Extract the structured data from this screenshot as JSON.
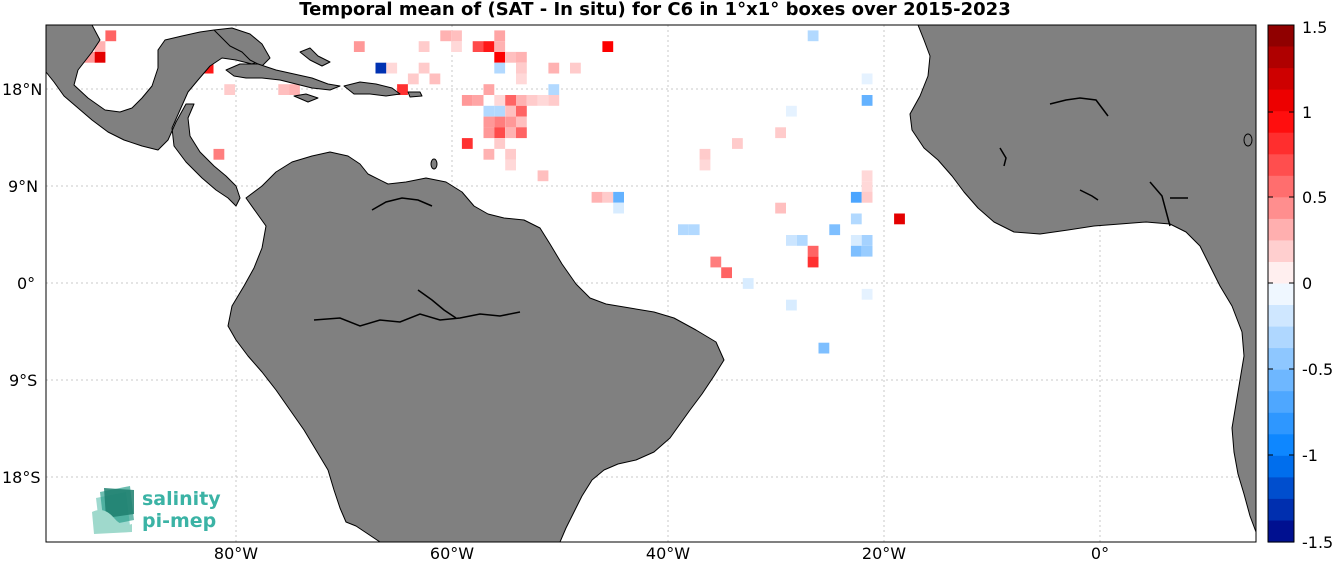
{
  "title": "Temporal mean of (SAT - In situ) for C6 in 1°x1° boxes over 2015-2023",
  "lat_labels": [
    "18°N",
    "9°N",
    "0°",
    "9°S",
    "18°S"
  ],
  "lon_labels": [
    "80°W",
    "60°W",
    "40°W",
    "20°W",
    "0°"
  ],
  "colorbar": {
    "ticks": [
      "1.5",
      "1",
      "0.5",
      "0",
      "-0.5",
      "-1",
      "-1.5"
    ],
    "min": -1.5,
    "max": 1.5,
    "steps": 24
  },
  "logo": {
    "line1": "salinity",
    "line2": "pi-mep"
  },
  "colors": {
    "land": "#808080",
    "ocean": "#ffffff",
    "grid": "#c8c8c8",
    "logo": "#3bb3a5"
  },
  "map_data": {
    "lon_range": [
      -98,
      14
    ],
    "lat_range": [
      -24,
      24
    ],
    "cells": [
      {
        "lon": -95,
        "lat": 22,
        "v": 0.35
      },
      {
        "lon": -93,
        "lat": 22,
        "v": 0.3
      },
      {
        "lon": -92,
        "lat": 23,
        "v": 0.6
      },
      {
        "lon": -93,
        "lat": 21,
        "v": 1.1
      },
      {
        "lon": -94,
        "lat": 21,
        "v": 0.4
      },
      {
        "lon": -83,
        "lat": 20,
        "v": 0.9
      },
      {
        "lon": -69,
        "lat": 22,
        "v": 0.4
      },
      {
        "lon": -67,
        "lat": 20,
        "v": -1.3
      },
      {
        "lon": -66,
        "lat": 20,
        "v": 0.15
      },
      {
        "lon": -63,
        "lat": 20,
        "v": 0.2
      },
      {
        "lon": -62,
        "lat": 19,
        "v": 0.25
      },
      {
        "lon": -64,
        "lat": 19,
        "v": 0.2
      },
      {
        "lon": -65,
        "lat": 18,
        "v": 0.8
      },
      {
        "lon": -63,
        "lat": 22,
        "v": 0.2
      },
      {
        "lon": -61,
        "lat": 23,
        "v": 0.3
      },
      {
        "lon": -60,
        "lat": 22,
        "v": 0.15
      },
      {
        "lon": -60,
        "lat": 23,
        "v": 0.25
      },
      {
        "lon": -58,
        "lat": 22,
        "v": 0.7
      },
      {
        "lon": -57,
        "lat": 22,
        "v": 0.9
      },
      {
        "lon": -56,
        "lat": 21,
        "v": 1.0
      },
      {
        "lon": -56,
        "lat": 22,
        "v": 0.3
      },
      {
        "lon": -55,
        "lat": 21,
        "v": 0.25
      },
      {
        "lon": -54,
        "lat": 21,
        "v": 0.3
      },
      {
        "lon": -56,
        "lat": 20,
        "v": -0.3
      },
      {
        "lon": -54,
        "lat": 20,
        "v": 0.2
      },
      {
        "lon": -54,
        "lat": 19,
        "v": 0.15
      },
      {
        "lon": -56,
        "lat": 23,
        "v": 0.35
      },
      {
        "lon": -57,
        "lat": 18,
        "v": 0.35
      },
      {
        "lon": -59,
        "lat": 17,
        "v": 0.4
      },
      {
        "lon": -58,
        "lat": 17,
        "v": 0.35
      },
      {
        "lon": -56,
        "lat": 17,
        "v": 0.15
      },
      {
        "lon": -55,
        "lat": 17,
        "v": 0.6
      },
      {
        "lon": -54,
        "lat": 17,
        "v": 0.3
      },
      {
        "lon": -53,
        "lat": 17,
        "v": 0.2
      },
      {
        "lon": -57,
        "lat": 16,
        "v": -0.3
      },
      {
        "lon": -56,
        "lat": 16,
        "v": -0.3
      },
      {
        "lon": -55,
        "lat": 16,
        "v": 0.25
      },
      {
        "lon": -54,
        "lat": 16,
        "v": 0.6
      },
      {
        "lon": -57,
        "lat": 15,
        "v": 0.4
      },
      {
        "lon": -56,
        "lat": 15,
        "v": 0.5
      },
      {
        "lon": -55,
        "lat": 15,
        "v": 0.4
      },
      {
        "lon": -54,
        "lat": 15,
        "v": 0.25
      },
      {
        "lon": -57,
        "lat": 14,
        "v": 0.4
      },
      {
        "lon": -56,
        "lat": 14,
        "v": 0.7
      },
      {
        "lon": -55,
        "lat": 14,
        "v": 0.3
      },
      {
        "lon": -54,
        "lat": 14,
        "v": 0.6
      },
      {
        "lon": -59,
        "lat": 13,
        "v": 0.8
      },
      {
        "lon": -57,
        "lat": 12,
        "v": 0.3
      },
      {
        "lon": -55,
        "lat": 12,
        "v": 0.2
      },
      {
        "lon": -55,
        "lat": 11,
        "v": 0.15
      },
      {
        "lon": -56,
        "lat": 13,
        "v": 0.2
      },
      {
        "lon": -52,
        "lat": 10,
        "v": 0.25
      },
      {
        "lon": -51,
        "lat": 17,
        "v": 0.2
      },
      {
        "lon": -51,
        "lat": 18,
        "v": -0.3
      },
      {
        "lon": -52,
        "lat": 17,
        "v": 0.15
      },
      {
        "lon": -51,
        "lat": 20,
        "v": 0.3
      },
      {
        "lon": -49,
        "lat": 20,
        "v": 0.2
      },
      {
        "lon": -46,
        "lat": 22,
        "v": 1.0
      },
      {
        "lon": -82,
        "lat": 12,
        "v": 0.5
      },
      {
        "lon": -81,
        "lat": 18,
        "v": 0.2
      },
      {
        "lon": -76,
        "lat": 18,
        "v": 0.25
      },
      {
        "lon": -75,
        "lat": 18,
        "v": 0.3
      },
      {
        "lon": -47,
        "lat": 8,
        "v": 0.3
      },
      {
        "lon": -46,
        "lat": 8,
        "v": 0.2
      },
      {
        "lon": -45,
        "lat": 8,
        "v": -0.6
      },
      {
        "lon": -45,
        "lat": 7,
        "v": -0.15
      },
      {
        "lon": -39,
        "lat": 5,
        "v": -0.3
      },
      {
        "lon": -38,
        "lat": 5,
        "v": -0.3
      },
      {
        "lon": -37,
        "lat": 11,
        "v": 0.15
      },
      {
        "lon": -37,
        "lat": 12,
        "v": 0.2
      },
      {
        "lon": -34,
        "lat": 13,
        "v": 0.2
      },
      {
        "lon": -36,
        "lat": 2,
        "v": 0.5
      },
      {
        "lon": -35,
        "lat": 1,
        "v": 0.6
      },
      {
        "lon": -33,
        "lat": 0,
        "v": -0.15
      },
      {
        "lon": -30,
        "lat": 14,
        "v": 0.2
      },
      {
        "lon": -29,
        "lat": 16,
        "v": -0.1
      },
      {
        "lon": -30,
        "lat": 7,
        "v": 0.25
      },
      {
        "lon": -29,
        "lat": 4,
        "v": -0.2
      },
      {
        "lon": -28,
        "lat": 4,
        "v": -0.3
      },
      {
        "lon": -27,
        "lat": 3,
        "v": 0.6
      },
      {
        "lon": -27,
        "lat": 2,
        "v": 0.8
      },
      {
        "lon": -27,
        "lat": 23,
        "v": -0.3
      },
      {
        "lon": -25,
        "lat": 5,
        "v": -0.5
      },
      {
        "lon": -29,
        "lat": -2,
        "v": -0.15
      },
      {
        "lon": -26,
        "lat": -6,
        "v": -0.5
      },
      {
        "lon": -23,
        "lat": 8,
        "v": -0.7
      },
      {
        "lon": -23,
        "lat": 6,
        "v": -0.3
      },
      {
        "lon": -23,
        "lat": 4,
        "v": -0.15
      },
      {
        "lon": -23,
        "lat": 3,
        "v": -0.5
      },
      {
        "lon": -22,
        "lat": 4,
        "v": -0.35
      },
      {
        "lon": -22,
        "lat": 3,
        "v": -0.4
      },
      {
        "lon": -22,
        "lat": 9,
        "v": 0.15
      },
      {
        "lon": -22,
        "lat": 10,
        "v": 0.15
      },
      {
        "lon": -22,
        "lat": 8,
        "v": 0.2
      },
      {
        "lon": -22,
        "lat": 17,
        "v": -0.6
      },
      {
        "lon": -22,
        "lat": 19,
        "v": -0.1
      },
      {
        "lon": -19,
        "lat": 6,
        "v": 1.1
      },
      {
        "lon": -22,
        "lat": -1,
        "v": -0.1
      }
    ]
  }
}
